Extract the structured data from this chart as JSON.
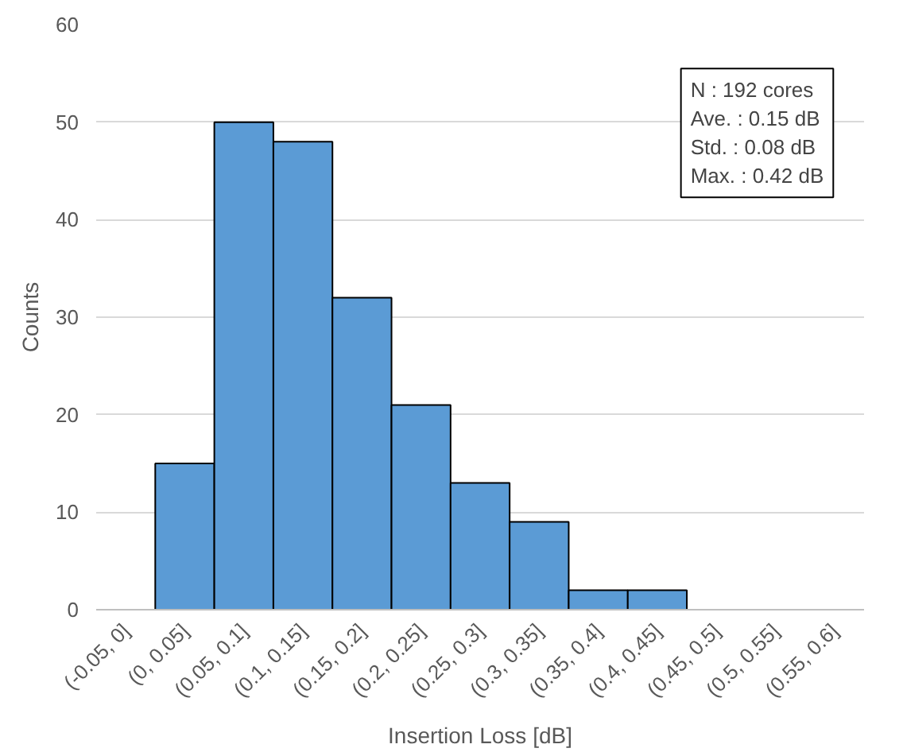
{
  "chart_data": {
    "type": "bar",
    "xlabel": "Insertion Loss [dB]",
    "ylabel": "Counts",
    "categories": [
      "(-0.05, 0]",
      "(0, 0.05]",
      "(0.05, 0.1]",
      "(0.1, 0.15]",
      "(0.15, 0.2]",
      "(0.2, 0.25]",
      "(0.25, 0.3]",
      "(0.3, 0.35]",
      "(0.35, 0.4]",
      "(0.4, 0.45]",
      "(0.45, 0.5]",
      "(0.5, 0.55]",
      "(0.55, 0.6]"
    ],
    "values": [
      0,
      15,
      50,
      48,
      32,
      21,
      13,
      9,
      2,
      2,
      0,
      0,
      0
    ],
    "color": "#5b9bd5",
    "ylim": [
      0,
      60
    ],
    "yticks": [
      0,
      10,
      20,
      30,
      40,
      50,
      60
    ],
    "grid": "y",
    "annotations": [
      "N : 192 cores",
      "Ave. : 0.15 dB",
      "Std. : 0.08 dB",
      "Max. : 0.42 dB"
    ]
  }
}
